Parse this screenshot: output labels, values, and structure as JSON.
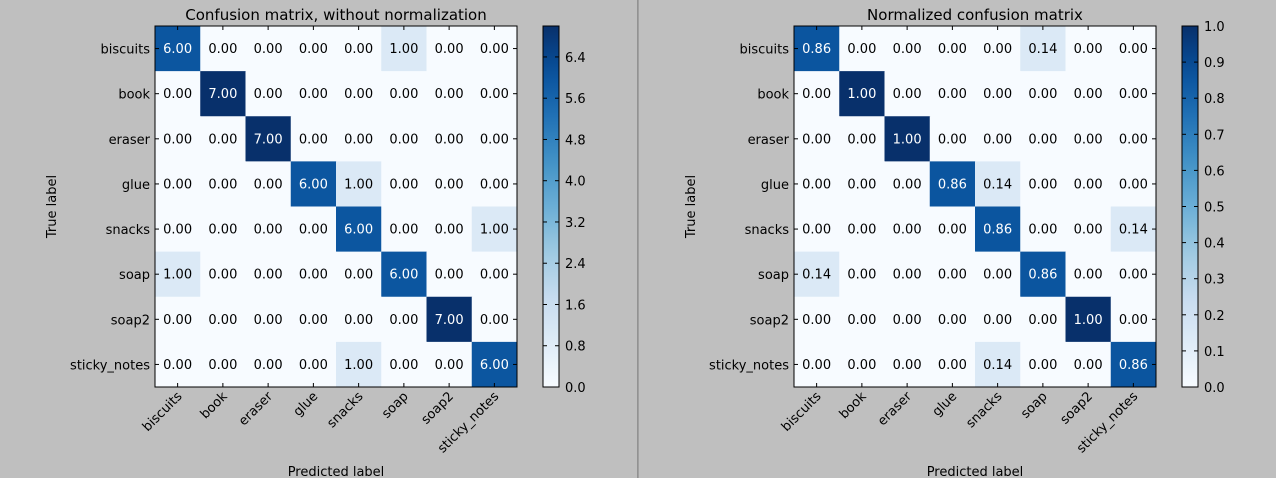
{
  "chart_data": [
    {
      "type": "heatmap",
      "title": "Confusion matrix, without normalization",
      "xlabel": "Predicted label",
      "ylabel": "True label",
      "x_categories": [
        "biscuits",
        "book",
        "eraser",
        "glue",
        "snacks",
        "soap",
        "soap2",
        "sticky_notes"
      ],
      "y_categories": [
        "biscuits",
        "book",
        "eraser",
        "glue",
        "snacks",
        "soap",
        "soap2",
        "sticky_notes"
      ],
      "values": [
        [
          6,
          0,
          0,
          0,
          0,
          1,
          0,
          0
        ],
        [
          0,
          7,
          0,
          0,
          0,
          0,
          0,
          0
        ],
        [
          0,
          0,
          7,
          0,
          0,
          0,
          0,
          0
        ],
        [
          0,
          0,
          0,
          6,
          1,
          0,
          0,
          0
        ],
        [
          0,
          0,
          0,
          0,
          6,
          0,
          0,
          1
        ],
        [
          1,
          0,
          0,
          0,
          0,
          6,
          0,
          0
        ],
        [
          0,
          0,
          0,
          0,
          0,
          0,
          7,
          0
        ],
        [
          0,
          0,
          0,
          0,
          1,
          0,
          0,
          6
        ]
      ],
      "value_format_decimals": 2,
      "colormap": "Blues",
      "color_range": [
        0,
        7
      ],
      "colorbar_ticks": [
        "0.0",
        "0.8",
        "1.6",
        "2.4",
        "3.2",
        "4.0",
        "4.8",
        "5.6",
        "6.4"
      ],
      "colorbar_tick_values": [
        0.0,
        0.8,
        1.6,
        2.4,
        3.2,
        4.0,
        4.8,
        5.6,
        6.4
      ],
      "legend": "colorbar-right"
    },
    {
      "type": "heatmap",
      "title": "Normalized confusion matrix",
      "xlabel": "Predicted label",
      "ylabel": "True label",
      "x_categories": [
        "biscuits",
        "book",
        "eraser",
        "glue",
        "snacks",
        "soap",
        "soap2",
        "sticky_notes"
      ],
      "y_categories": [
        "biscuits",
        "book",
        "eraser",
        "glue",
        "snacks",
        "soap",
        "soap2",
        "sticky_notes"
      ],
      "values": [
        [
          0.86,
          0,
          0,
          0,
          0,
          0.14,
          0,
          0
        ],
        [
          0,
          1.0,
          0,
          0,
          0,
          0,
          0,
          0
        ],
        [
          0,
          0,
          1.0,
          0,
          0,
          0,
          0,
          0
        ],
        [
          0,
          0,
          0,
          0.86,
          0.14,
          0,
          0,
          0
        ],
        [
          0,
          0,
          0,
          0,
          0.86,
          0,
          0,
          0.14
        ],
        [
          0.14,
          0,
          0,
          0,
          0,
          0.86,
          0,
          0
        ],
        [
          0,
          0,
          0,
          0,
          0,
          0,
          1.0,
          0
        ],
        [
          0,
          0,
          0,
          0,
          0.14,
          0,
          0,
          0.86
        ]
      ],
      "value_format_decimals": 2,
      "colormap": "Blues",
      "color_range": [
        0,
        1
      ],
      "colorbar_ticks": [
        "0.0",
        "0.1",
        "0.2",
        "0.3",
        "0.4",
        "0.5",
        "0.6",
        "0.7",
        "0.8",
        "0.9",
        "1.0"
      ],
      "colorbar_tick_values": [
        0.0,
        0.1,
        0.2,
        0.3,
        0.4,
        0.5,
        0.6,
        0.7,
        0.8,
        0.9,
        1.0
      ],
      "legend": "colorbar-right"
    }
  ],
  "colors": {
    "figure_background": "#bfbfbf",
    "cell_text_dark": "#000000",
    "cell_text_light": "#ffffff"
  }
}
